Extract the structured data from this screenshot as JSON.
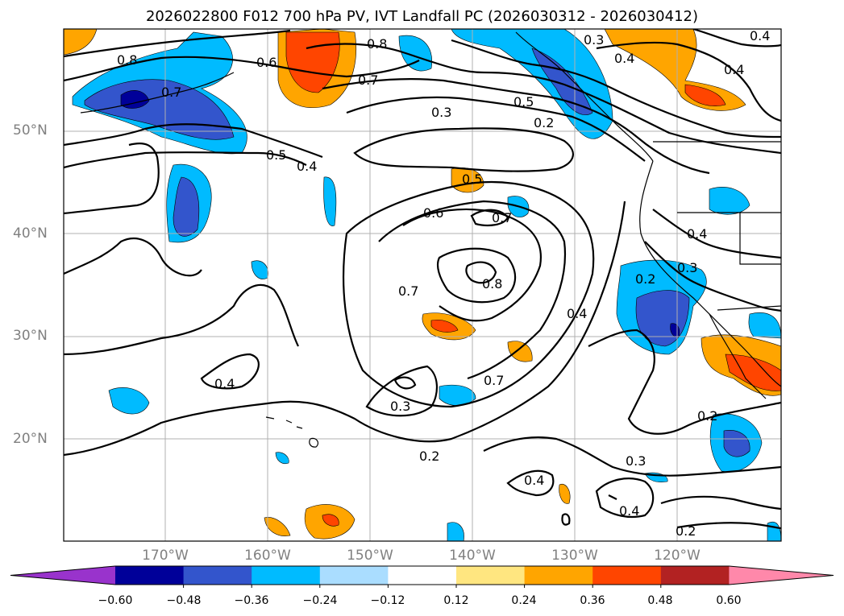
{
  "title": "2026022800 F012 700 hPa PV, IVT Landfall PC (2026030312 - 2026030412)",
  "lat_labels": [
    "50°N",
    "40°N",
    "30°N",
    "20°N"
  ],
  "lon_labels": [
    "170°W",
    "160°W",
    "150°W",
    "140°W",
    "130°W",
    "120°W"
  ],
  "contour_labels": [
    "0.8",
    "0.7",
    "0.6",
    "0.8",
    "0.7",
    "0.5",
    "0.4",
    "0.3",
    "0.5",
    "0.2",
    "0.3",
    "0.4",
    "0.4",
    "0.6",
    "0.5",
    "0.7",
    "0.7",
    "0.8",
    "0.4",
    "0.3",
    "0.7",
    "0.2",
    "0.3",
    "0.4",
    "0.2",
    "0.4",
    "0.2",
    "0.3",
    "0.4",
    "0.2",
    "0.4",
    "0.4"
  ],
  "colorbar": {
    "colors": [
      "#9933cc",
      "#000099",
      "#3355cc",
      "#00bbff",
      "#aaddff",
      "#ffffff",
      "#ffe680",
      "#ffa500",
      "#ff4500",
      "#b22222",
      "#ff88aa"
    ],
    "tick_labels": [
      "−0.60",
      "−0.48",
      "−0.36",
      "−0.24",
      "−0.12",
      "0.12",
      "0.24",
      "0.36",
      "0.48",
      "0.60"
    ]
  }
}
